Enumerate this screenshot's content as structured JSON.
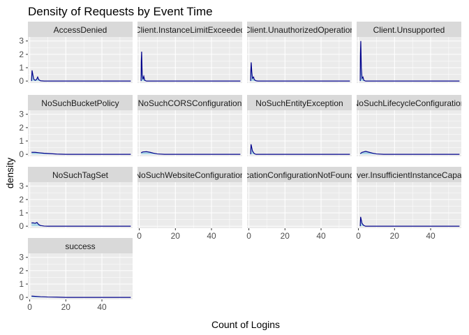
{
  "chart_data": {
    "type": "area",
    "title": "Density of Requests by Event Time",
    "xlabel": "Count of Logins",
    "ylabel": "density",
    "xlim": [
      -1,
      57
    ],
    "ylim": [
      -0.15,
      3.3
    ],
    "x_ticks": [
      0,
      20,
      40
    ],
    "y_ticks": [
      0,
      1,
      2,
      3
    ],
    "grid": true,
    "legend": "none",
    "colors": {
      "line": "#00008b",
      "fill": "#add8e6",
      "panel_bg": "#ebebeb",
      "strip_bg": "#d9d9d9",
      "grid": "#ffffff"
    },
    "facets": [
      {
        "label": "AccessDenied",
        "points": [
          [
            1,
            0
          ],
          [
            1.3,
            0.8
          ],
          [
            1.7,
            0.5
          ],
          [
            2.2,
            0.15
          ],
          [
            3,
            0.05
          ],
          [
            3.8,
            0.12
          ],
          [
            4.4,
            0.3
          ],
          [
            5,
            0.1
          ],
          [
            6,
            0.02
          ],
          [
            8,
            0
          ],
          [
            56,
            0
          ]
        ]
      },
      {
        "label": "Client.InstanceLimitExceeded",
        "points": [
          [
            1,
            0
          ],
          [
            1.1,
            1.5
          ],
          [
            1.3,
            2.2
          ],
          [
            1.6,
            0.5
          ],
          [
            2,
            0.12
          ],
          [
            2.5,
            0.35
          ],
          [
            3,
            0.05
          ],
          [
            4,
            0
          ],
          [
            56,
            0
          ]
        ]
      },
      {
        "label": "Client.UnauthorizedOperation",
        "points": [
          [
            1,
            0
          ],
          [
            1.1,
            0.8
          ],
          [
            1.3,
            1.4
          ],
          [
            1.6,
            0.7
          ],
          [
            2,
            0.2
          ],
          [
            2.6,
            0.3
          ],
          [
            3,
            0.1
          ],
          [
            4,
            0.02
          ],
          [
            5,
            0
          ],
          [
            56,
            0
          ]
        ]
      },
      {
        "label": "Client.Unsupported",
        "points": [
          [
            1,
            0
          ],
          [
            1.1,
            2.0
          ],
          [
            1.3,
            3.0
          ],
          [
            1.6,
            1.0
          ],
          [
            2,
            0.2
          ],
          [
            2.5,
            0.3
          ],
          [
            3,
            0.05
          ],
          [
            4,
            0
          ],
          [
            56,
            0
          ]
        ]
      },
      {
        "label": "NoSuchBucketPolicy",
        "points": [
          [
            1,
            0.15
          ],
          [
            3,
            0.15
          ],
          [
            5,
            0.12
          ],
          [
            8,
            0.08
          ],
          [
            15,
            0.02
          ],
          [
            20,
            0
          ],
          [
            56,
            0
          ]
        ]
      },
      {
        "label": "NoSuchCORSConfiguration",
        "points": [
          [
            1,
            0.12
          ],
          [
            2,
            0.18
          ],
          [
            4,
            0.2
          ],
          [
            6,
            0.15
          ],
          [
            8,
            0.08
          ],
          [
            10,
            0.03
          ],
          [
            14,
            0
          ],
          [
            56,
            0
          ]
        ]
      },
      {
        "label": "NoSuchEntityException",
        "points": [
          [
            1,
            0
          ],
          [
            1.2,
            0.75
          ],
          [
            1.6,
            0.5
          ],
          [
            2,
            0.25
          ],
          [
            3,
            0.05
          ],
          [
            4,
            0
          ],
          [
            56,
            0
          ]
        ]
      },
      {
        "label": "NoSuchLifecycleConfiguration",
        "points": [
          [
            1,
            0.05
          ],
          [
            2,
            0.15
          ],
          [
            4,
            0.22
          ],
          [
            6,
            0.15
          ],
          [
            8,
            0.08
          ],
          [
            10,
            0.03
          ],
          [
            14,
            0
          ],
          [
            56,
            0
          ]
        ]
      },
      {
        "label": "NoSuchTagSet",
        "points": [
          [
            1,
            0.25
          ],
          [
            2,
            0.25
          ],
          [
            3,
            0.22
          ],
          [
            4,
            0.28
          ],
          [
            5,
            0.12
          ],
          [
            6,
            0.05
          ],
          [
            8,
            0.01
          ],
          [
            10,
            0
          ],
          [
            56,
            0
          ]
        ]
      },
      {
        "label": "NoSuchWebsiteConfiguration",
        "points": []
      },
      {
        "label": "ReplicationConfigurationNotFoundError",
        "points": []
      },
      {
        "label": "Server.InsufficientInstanceCapacity",
        "points": [
          [
            1,
            0
          ],
          [
            1.2,
            0.7
          ],
          [
            1.6,
            0.45
          ],
          [
            2,
            0.2
          ],
          [
            3,
            0.05
          ],
          [
            4,
            0
          ],
          [
            56,
            0
          ]
        ]
      },
      {
        "label": "success",
        "points": [
          [
            1,
            0.1
          ],
          [
            3,
            0.08
          ],
          [
            6,
            0.05
          ],
          [
            10,
            0.03
          ],
          [
            15,
            0.02
          ],
          [
            20,
            0
          ],
          [
            56,
            0
          ]
        ]
      }
    ]
  }
}
